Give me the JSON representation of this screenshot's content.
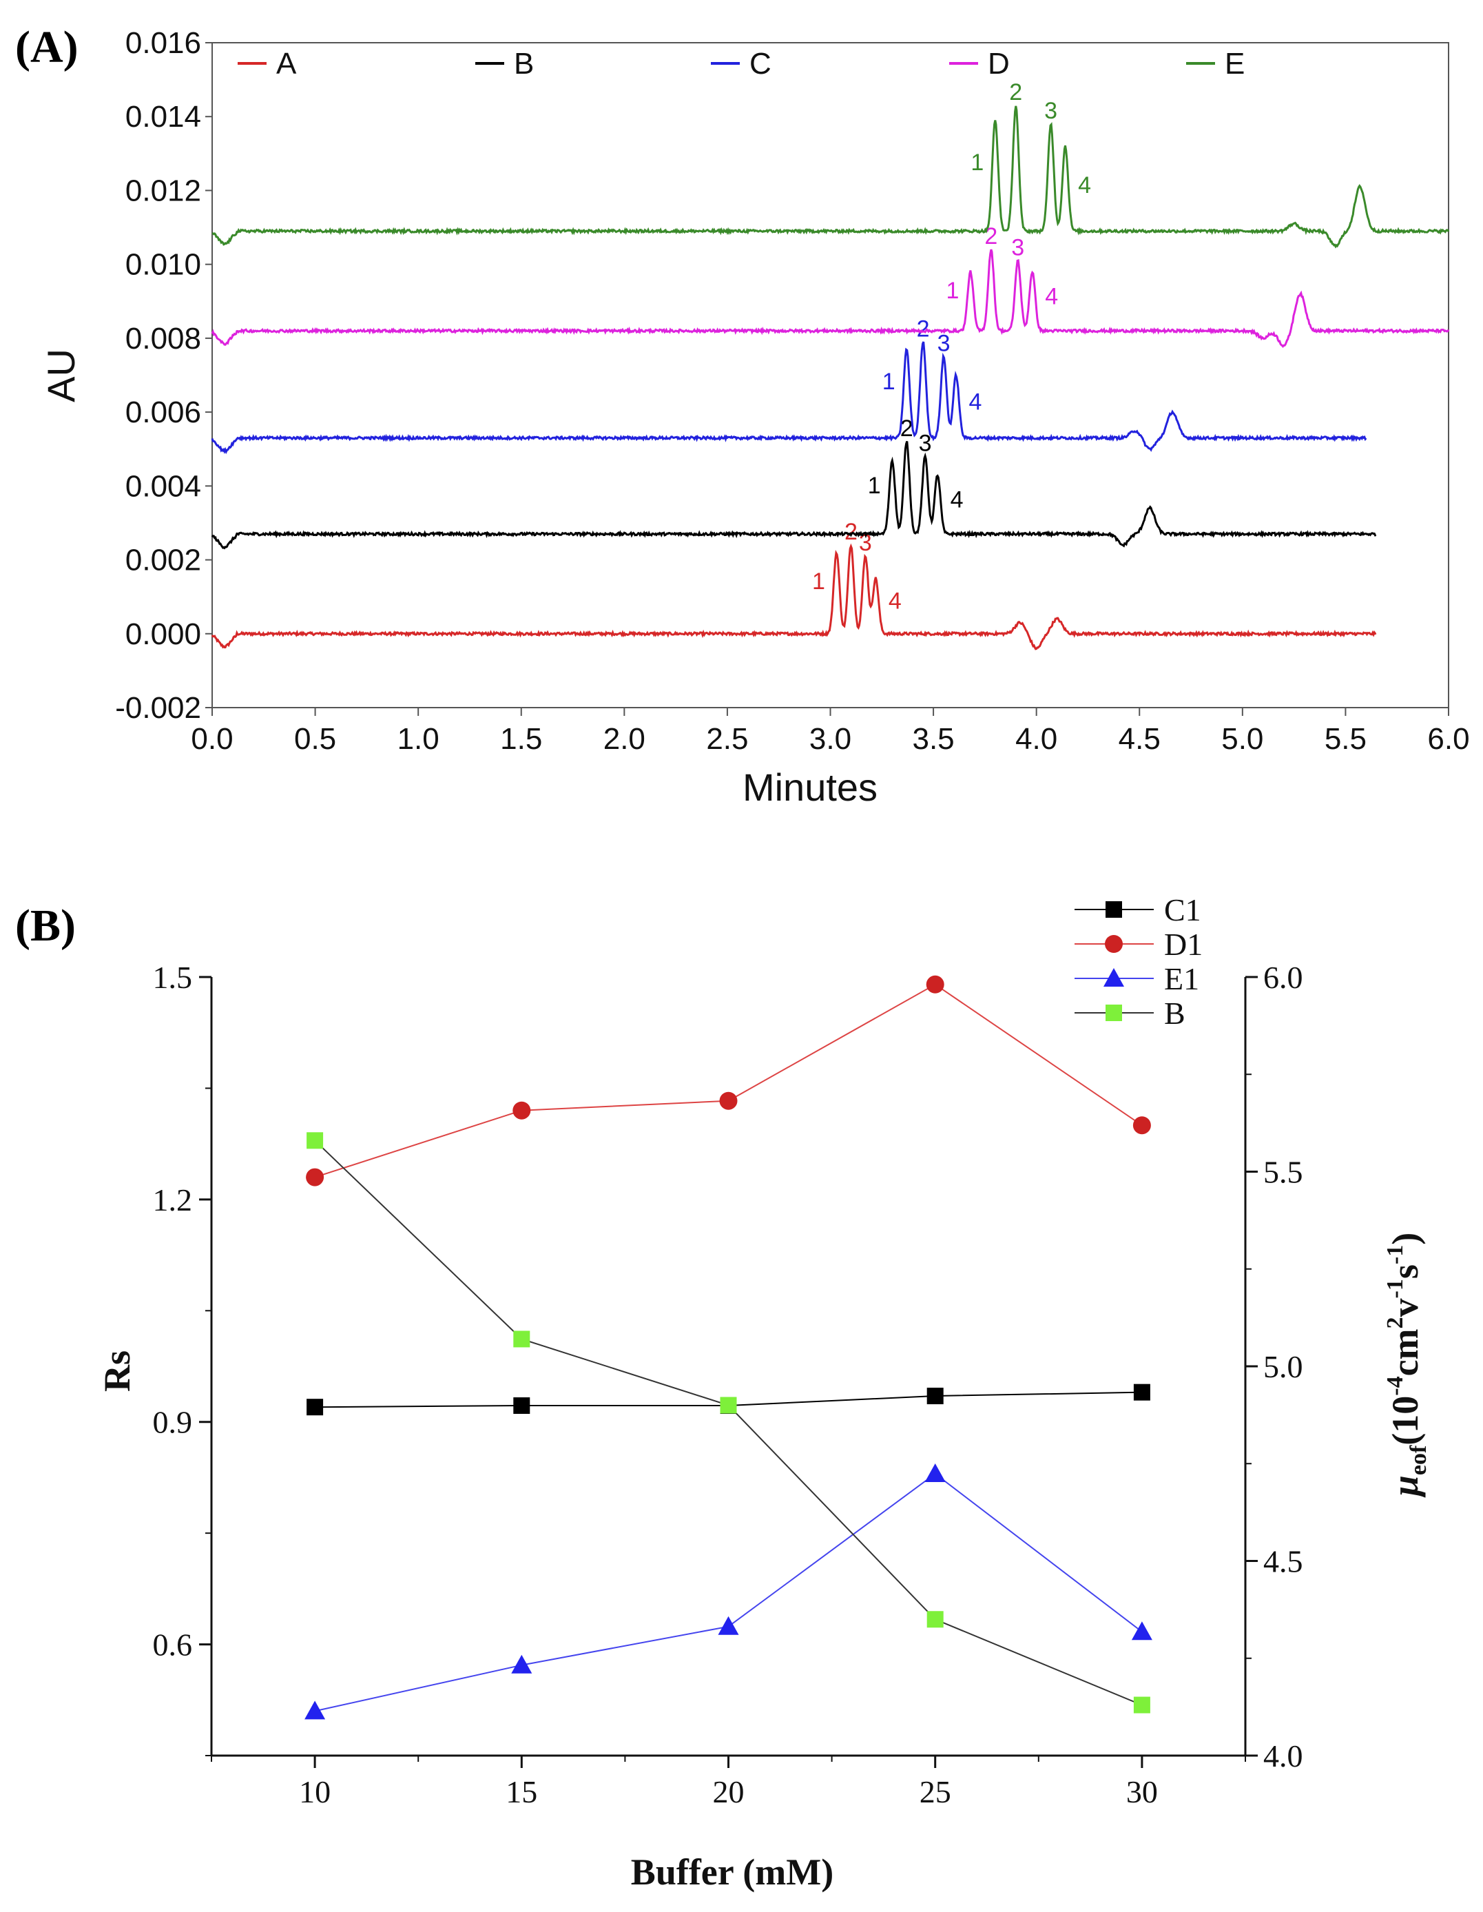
{
  "chart_data": [
    {
      "panel": "(A)",
      "type": "line",
      "xlabel": "Minutes",
      "ylabel": "AU",
      "xlim": [
        0.0,
        6.0
      ],
      "ylim": [
        -0.002,
        0.016
      ],
      "xticks": [
        "0.0",
        "0.5",
        "1.0",
        "1.5",
        "2.0",
        "2.5",
        "3.0",
        "3.5",
        "4.0",
        "4.5",
        "5.0",
        "5.5",
        "6.0"
      ],
      "yticks": [
        "-0.002",
        "0.000",
        "0.002",
        "0.004",
        "0.006",
        "0.008",
        "0.010",
        "0.012",
        "0.014",
        "0.016"
      ],
      "series": [
        {
          "name": "A",
          "color": "#d62728",
          "baseline": 0.0,
          "end": 5.65,
          "peaks": [
            {
              "label": "1",
              "x": 3.03,
              "h": 0.0022
            },
            {
              "label": "2",
              "x": 3.1,
              "h": 0.0024
            },
            {
              "label": "3",
              "x": 3.17,
              "h": 0.0021
            },
            {
              "label": "4",
              "x": 3.22,
              "h": 0.0015
            }
          ],
          "events": [
            {
              "x": 3.92,
              "h": 0.0003
            },
            {
              "x": 4.0,
              "h": -0.0004
            },
            {
              "x": 4.1,
              "h": 0.0004
            }
          ]
        },
        {
          "name": "B",
          "color": "#000000",
          "baseline": 0.0027,
          "end": 5.65,
          "peaks": [
            {
              "label": "1",
              "x": 3.3,
              "h": 0.002
            },
            {
              "label": "2",
              "x": 3.37,
              "h": 0.0025
            },
            {
              "label": "3",
              "x": 3.46,
              "h": 0.0021
            },
            {
              "label": "4",
              "x": 3.52,
              "h": 0.0016
            }
          ],
          "events": [
            {
              "x": 4.42,
              "h": -0.0003
            },
            {
              "x": 4.55,
              "h": 0.0007
            }
          ]
        },
        {
          "name": "C",
          "color": "#2222dd",
          "baseline": 0.0053,
          "end": 5.6,
          "peaks": [
            {
              "label": "1",
              "x": 3.37,
              "h": 0.0024
            },
            {
              "label": "2",
              "x": 3.45,
              "h": 0.0026
            },
            {
              "label": "3",
              "x": 3.55,
              "h": 0.0022
            },
            {
              "label": "4",
              "x": 3.61,
              "h": 0.0017
            }
          ],
          "events": [
            {
              "x": 4.48,
              "h": 0.0002
            },
            {
              "x": 4.55,
              "h": -0.0003
            },
            {
              "x": 4.66,
              "h": 0.0007
            }
          ]
        },
        {
          "name": "D",
          "color": "#dd22dd",
          "baseline": 0.0082,
          "end": 6.0,
          "peaks": [
            {
              "label": "1",
              "x": 3.68,
              "h": 0.0016
            },
            {
              "label": "2",
              "x": 3.78,
              "h": 0.0022
            },
            {
              "label": "3",
              "x": 3.91,
              "h": 0.0019
            },
            {
              "label": "4",
              "x": 3.98,
              "h": 0.0016
            }
          ],
          "events": [
            {
              "x": 5.1,
              "h": -0.0002
            },
            {
              "x": 5.2,
              "h": -0.0004
            },
            {
              "x": 5.28,
              "h": 0.001
            }
          ]
        },
        {
          "name": "E",
          "color": "#3a8a2a",
          "baseline": 0.0109,
          "end": 6.0,
          "peaks": [
            {
              "label": "1",
              "x": 3.8,
              "h": 0.003
            },
            {
              "label": "2",
              "x": 3.9,
              "h": 0.0034
            },
            {
              "label": "3",
              "x": 4.07,
              "h": 0.0029
            },
            {
              "label": "4",
              "x": 4.14,
              "h": 0.0023
            }
          ],
          "events": [
            {
              "x": 5.25,
              "h": 0.0002
            },
            {
              "x": 5.45,
              "h": -0.0004
            },
            {
              "x": 5.57,
              "h": 0.0012
            }
          ]
        }
      ]
    },
    {
      "panel": "(B)",
      "type": "line",
      "xlabel": "Buffer (mM)",
      "ylabel": "Rs",
      "ylabel_right_main": "μ",
      "ylabel_right_sub": "eof",
      "ylabel_right_rest": "(10",
      "ylabel_right_exp1": "-4",
      "ylabel_right_unit1": "cm",
      "ylabel_right_exp2": "2",
      "ylabel_right_unit2": "v",
      "ylabel_right_exp3": "-1",
      "ylabel_right_unit3": "s",
      "ylabel_right_exp4": "-1",
      "ylabel_right_close": ")",
      "x": [
        10,
        15,
        20,
        25,
        30
      ],
      "xticks": [
        "10",
        "15",
        "20",
        "25",
        "30"
      ],
      "xlim": [
        7.5,
        32.5
      ],
      "ylim": [
        0.45,
        1.5
      ],
      "yticks": [
        "0.6",
        "0.9",
        "1.2",
        "1.5"
      ],
      "y2lim": [
        4.0,
        6.0
      ],
      "y2ticks": [
        "4.0",
        "4.5",
        "5.0",
        "5.5",
        "6.0"
      ],
      "series": [
        {
          "name": "C1",
          "axis": "left",
          "marker": "square",
          "color": "#000000",
          "line": "#000000",
          "values": [
            0.92,
            0.922,
            0.922,
            0.935,
            0.94
          ]
        },
        {
          "name": "D1",
          "axis": "left",
          "marker": "circle",
          "color": "#cc2222",
          "line": "#dd4444",
          "values": [
            1.23,
            1.32,
            1.333,
            1.49,
            1.3
          ]
        },
        {
          "name": "E1",
          "axis": "left",
          "marker": "triangle",
          "color": "#2222ee",
          "line": "#4444ee",
          "values": [
            0.51,
            0.572,
            0.624,
            0.83,
            0.617
          ]
        },
        {
          "name": "B",
          "axis": "right",
          "marker": "square",
          "color": "#7ef03a",
          "line": "#333333",
          "values": [
            5.58,
            5.07,
            4.9,
            4.35,
            4.13
          ]
        }
      ]
    }
  ]
}
